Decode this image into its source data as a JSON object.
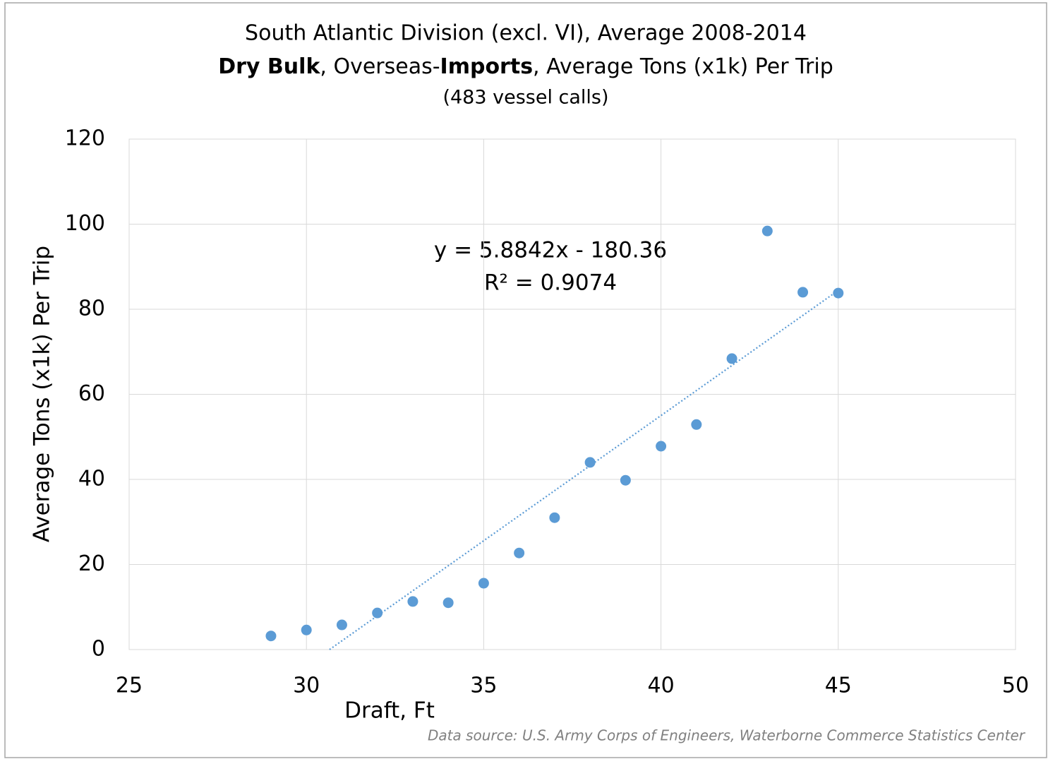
{
  "chart_data": {
    "type": "scatter",
    "title": "South Atlantic Division (excl. VI),  Average 2008-2014",
    "subtitle": [
      {
        "text": "Dry Bulk",
        "bold": true
      },
      {
        "text": ", Overseas-",
        "bold": false
      },
      {
        "text": "Imports",
        "bold": true
      },
      {
        "text": ", Average Tons (x1k) Per Trip",
        "bold": false
      }
    ],
    "subtitle2": "(483 vessel calls)",
    "x_label": "Draft, Ft",
    "y_label": "Average Tons (x1k) Per Trip",
    "source": "Data source: U.S. Army Corps of Engineers, Waterborne Commerce Statistics Center",
    "x": [
      29,
      30,
      31,
      32,
      33,
      34,
      35,
      36,
      37,
      38,
      39,
      40,
      41,
      42,
      43,
      44,
      45
    ],
    "values": [
      3.2,
      4.6,
      5.8,
      8.6,
      11.3,
      11.0,
      15.6,
      22.7,
      31.0,
      44.0,
      39.8,
      47.8,
      52.9,
      68.4,
      98.4,
      84.0,
      83.8
    ],
    "color": "#5b9bd5",
    "xlim": [
      25,
      50
    ],
    "xticks": [
      25,
      30,
      35,
      40,
      45,
      50
    ],
    "ylim": [
      0,
      120
    ],
    "yticks": [
      0,
      20,
      40,
      60,
      80,
      100,
      120
    ],
    "grid": true,
    "trendline": {
      "slope": 5.8842,
      "intercept": -180.36,
      "r2": 0.9074,
      "equation_label": "y = 5.8842x - 180.36",
      "r2_label": "R² = 0.9074"
    }
  }
}
